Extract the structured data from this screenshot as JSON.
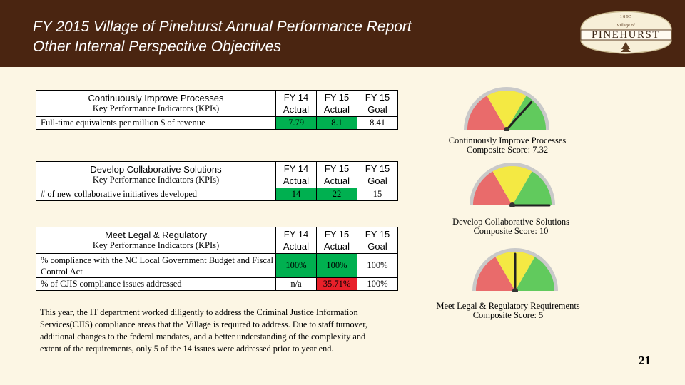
{
  "header": {
    "title_line1": "FY 2015 Village of Pinehurst Annual Performance Report",
    "title_line2": "Other Internal Perspective Objectives",
    "logo_year": "1 8 9 5",
    "logo_village": "Village of",
    "logo_name": "PINEHURST"
  },
  "col_headers": {
    "fy14_actual": [
      "FY 14",
      "Actual"
    ],
    "fy15_actual": [
      "FY 15",
      "Actual"
    ],
    "fy15_goal": [
      "FY 15",
      "Goal"
    ]
  },
  "tables": [
    {
      "title": "Continuously Improve Processes",
      "subtitle": "Key Performance Indicators (KPIs)",
      "rows": [
        {
          "label": "Full-time equivalents per million $ of revenue",
          "fy14": "7.79",
          "fy15": "8.1",
          "goal": "8.41"
        }
      ]
    },
    {
      "title": "Develop Collaborative Solutions",
      "subtitle": "Key Performance Indicators (KPIs)",
      "rows": [
        {
          "label": "# of new collaborative initiatives developed",
          "fy14": "14",
          "fy15": "22",
          "goal": "15"
        }
      ]
    },
    {
      "title": "Meet Legal & Regulatory",
      "subtitle": "Key Performance Indicators (KPIs)",
      "rows": [
        {
          "label": "% compliance with the NC Local Government Budget and Fiscal Control Act",
          "fy14": "100%",
          "fy15": "100%",
          "goal": "100%"
        },
        {
          "label": "% of CJIS compliance issues addressed",
          "fy14": "n/a",
          "fy15": "35.71%",
          "goal": "100%"
        }
      ]
    }
  ],
  "gauges": [
    {
      "caption_line1": "Continuously Improve Processes",
      "caption_line2": "Composite Score:  7.32",
      "score": 7.32
    },
    {
      "caption_line1": "Develop Collaborative Solutions",
      "caption_line2": "Composite Score:  10",
      "score": 10
    },
    {
      "caption_line1": "Meet Legal & Regulatory Requirements",
      "caption_line2": "Composite Score:  5",
      "score": 5
    }
  ],
  "paragraph": "This year, the IT department worked diligently to address the Criminal Justice Information Services(CJIS) compliance areas that the Village is required to address.  Due to staff turnover, additional changes to the federal mandates, and a better understanding of the complexity and extent of the requirements, only 5 of the 14 issues were addressed prior to year end.",
  "page_number": "21",
  "colors": {
    "header_bg": "#4a2511",
    "page_bg": "#fcf6e4",
    "good": "#00b050",
    "bad": "#e8202a"
  }
}
